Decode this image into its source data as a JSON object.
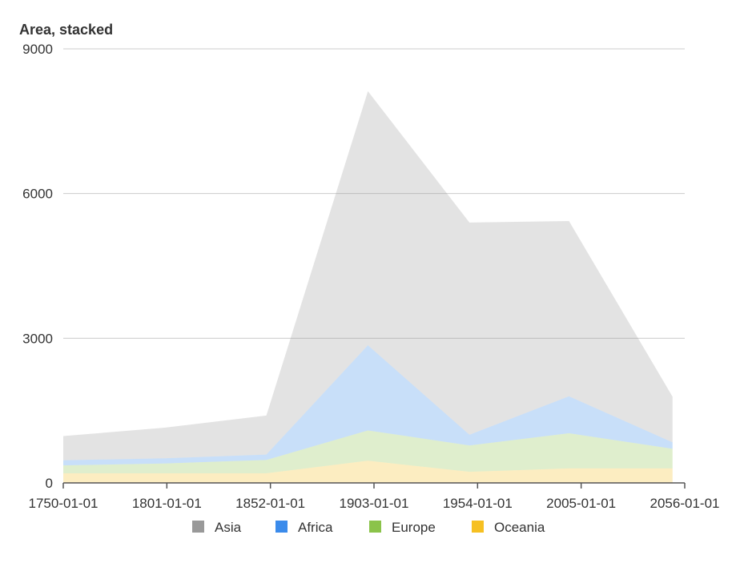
{
  "chart_data": {
    "type": "area",
    "stacked": true,
    "title": "Area, stacked",
    "xlabel": "",
    "ylabel": "",
    "x": [
      "1750-01-01",
      "1801-01-01",
      "1852-01-01",
      "1903-01-01",
      "1954-01-01",
      "2005-01-01",
      "2056-01-01"
    ],
    "x_ticks": [
      "1750-01-01",
      "1801-01-01",
      "1852-01-01",
      "1903-01-01",
      "1954-01-01",
      "2005-01-01",
      "2056-01-01"
    ],
    "points_x": [
      "1750-01-01",
      "1800-01-01",
      "1850-01-01",
      "1900-01-01",
      "1950-01-01",
      "1999-01-01",
      "2050-01-01"
    ],
    "ylim": [
      0,
      9000
    ],
    "y_ticks": [
      0,
      3000,
      6000,
      9000
    ],
    "grid": true,
    "legend_position": "bottom",
    "series": [
      {
        "name": "Asia",
        "color": "#999999",
        "values": [
          502,
          635,
          809,
          5268,
          4400,
          3634,
          947
        ]
      },
      {
        "name": "Africa",
        "color": "#3b8beb",
        "values": [
          106,
          107,
          111,
          1766,
          221,
          767,
          133
        ]
      },
      {
        "name": "Europe",
        "color": "#8bc34a",
        "values": [
          163,
          203,
          276,
          628,
          547,
          729,
          408
        ]
      },
      {
        "name": "Oceania",
        "color": "#f6c022",
        "values": [
          200,
          200,
          200,
          460,
          230,
          300,
          300
        ]
      }
    ]
  }
}
